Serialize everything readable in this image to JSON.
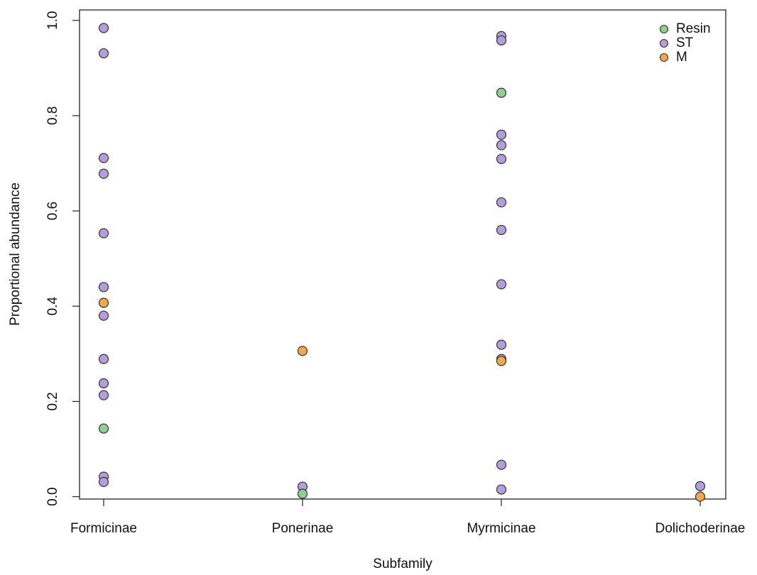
{
  "chart_data": {
    "type": "strip",
    "x_label": "Subfamily",
    "y_label": "Proportional abundance",
    "categories": [
      "Formicinae",
      "Ponerinae",
      "Myrmicinae",
      "Dolichoderinae"
    ],
    "ylim": [
      -0.005,
      1.022
    ],
    "yticks": [
      {
        "value": 0,
        "label": "0.0"
      },
      {
        "value": 0.2,
        "label": "0.2"
      },
      {
        "value": 0.4,
        "label": "0.4"
      },
      {
        "value": 0.6,
        "label": "0.6"
      },
      {
        "value": 0.8,
        "label": "0.8"
      },
      {
        "value": 1,
        "label": "1.0"
      }
    ],
    "legend": "top-right",
    "series": [
      {
        "name": "Resin",
        "color": "#8fcf8f",
        "x": [
          "Formicinae",
          "Ponerinae",
          "Myrmicinae"
        ],
        "values": [
          0.143,
          0.006,
          0.848
        ]
      },
      {
        "name": "ST",
        "color": "#b39ddb",
        "x": [
          "Formicinae",
          "Formicinae",
          "Formicinae",
          "Formicinae",
          "Formicinae",
          "Formicinae",
          "Formicinae",
          "Formicinae",
          "Formicinae",
          "Formicinae",
          "Formicinae",
          "Formicinae",
          "Ponerinae",
          "Myrmicinae",
          "Myrmicinae",
          "Myrmicinae",
          "Myrmicinae",
          "Myrmicinae",
          "Myrmicinae",
          "Myrmicinae",
          "Myrmicinae",
          "Myrmicinae",
          "Myrmicinae",
          "Myrmicinae",
          "Myrmicinae",
          "Dolichoderinae"
        ],
        "values": [
          0.984,
          0.931,
          0.711,
          0.678,
          0.553,
          0.44,
          0.38,
          0.289,
          0.238,
          0.213,
          0.042,
          0.031,
          0.021,
          0.967,
          0.958,
          0.76,
          0.738,
          0.709,
          0.618,
          0.56,
          0.446,
          0.319,
          0.289,
          0.067,
          0.015,
          0.022
        ]
      },
      {
        "name": "M",
        "color": "#f0a848",
        "x": [
          "Formicinae",
          "Ponerinae",
          "Myrmicinae",
          "Dolichoderinae"
        ],
        "values": [
          0.407,
          0.306,
          0.285,
          0.0
        ]
      }
    ]
  }
}
